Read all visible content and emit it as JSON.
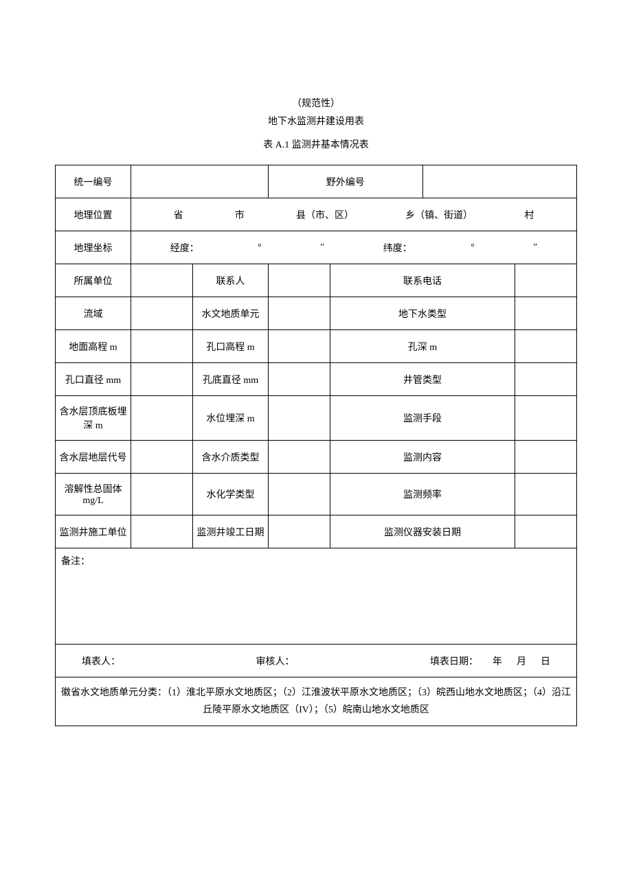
{
  "header": {
    "subtitle": "（规范性）",
    "title": "地下水监测井建设用表",
    "table_title": "表 A.1 监测井基本情况表"
  },
  "row1": {
    "label1": "统一编号",
    "label2": "野外编号"
  },
  "row2": {
    "label": "地理位置",
    "seg_prov": "省",
    "seg_city": "市",
    "seg_county": "县（市、区）",
    "seg_town": "乡（镇、街道）",
    "seg_village": "村"
  },
  "row3": {
    "label": "地理坐标",
    "lng_label": "经度：",
    "deg": "°",
    "sec": "″",
    "lat_label": "纬度：",
    "deg2": "°",
    "sec2": "″"
  },
  "row4": {
    "label1": "所属单位",
    "label2": "联系人",
    "label3": "联系电话"
  },
  "row5": {
    "label1": "流域",
    "label2": "水文地质单元",
    "label3": "地下水类型"
  },
  "row6": {
    "label1": "地面高程 m",
    "label2": "孔口高程 m",
    "label3": "孔深 m"
  },
  "row7": {
    "label1": "孔口直径 mm",
    "label2": "孔底直径 mm",
    "label3": "井管类型"
  },
  "row8": {
    "label1": "含水层顶底板埋深 m",
    "label2": "水位埋深 m",
    "label3": "监测手段"
  },
  "row9": {
    "label1": "含水层地层代号",
    "label2": "含水介质类型",
    "label3": "监测内容"
  },
  "row10": {
    "label1": "溶解性总固体 mg/L",
    "label2": "水化学类型",
    "label3": "监测频率"
  },
  "row11": {
    "label1": "监测井施工单位",
    "label2": "监测井竣工日期",
    "label3": "监测仪器安装日期"
  },
  "remark": {
    "label": "备注："
  },
  "footer": {
    "filler": "填表人：",
    "reviewer": "审核人：",
    "date_label": "填表日期：",
    "year": "年",
    "month": "月",
    "day": "日"
  },
  "note": {
    "text": "徽省水文地质单元分类：（1）淮北平原水文地质区；（2）江淮波状平原水文地质区；（3）皖西山地水文地质区；（4）沿江丘陵平原水文地质区（IV）；（5）皖南山地水文地质区"
  }
}
